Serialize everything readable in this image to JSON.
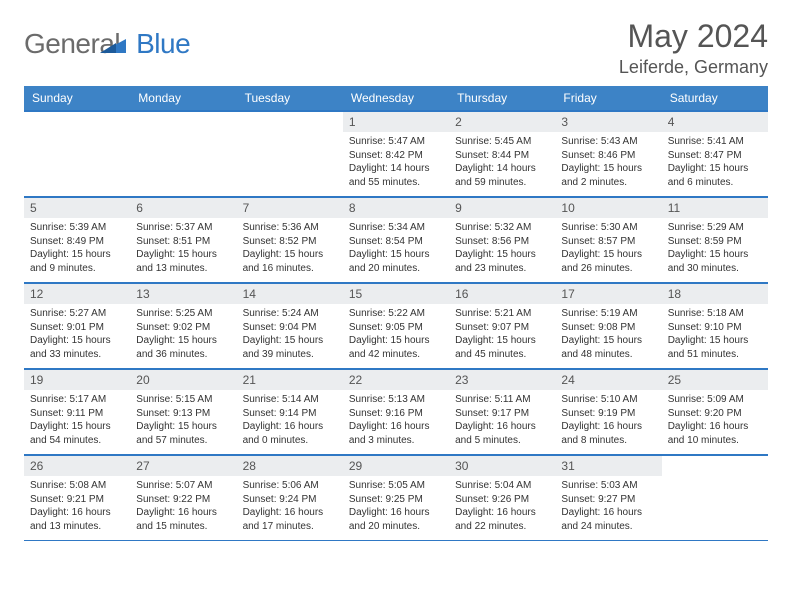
{
  "brand": {
    "first": "General",
    "second": "Blue"
  },
  "title": "May 2024",
  "location": "Leiferde, Germany",
  "colors": {
    "header_bg": "#3d83c6",
    "header_text": "#ffffff",
    "border": "#2f78c4",
    "daynum_bg": "#ebedef",
    "logo_gray": "#6b6b6b",
    "logo_blue": "#2f78c4"
  },
  "weekdays": [
    "Sunday",
    "Monday",
    "Tuesday",
    "Wednesday",
    "Thursday",
    "Friday",
    "Saturday"
  ],
  "weeks": [
    [
      null,
      null,
      null,
      {
        "n": "1",
        "sr": "5:47 AM",
        "ss": "8:42 PM",
        "dl": "14 hours and 55 minutes."
      },
      {
        "n": "2",
        "sr": "5:45 AM",
        "ss": "8:44 PM",
        "dl": "14 hours and 59 minutes."
      },
      {
        "n": "3",
        "sr": "5:43 AM",
        "ss": "8:46 PM",
        "dl": "15 hours and 2 minutes."
      },
      {
        "n": "4",
        "sr": "5:41 AM",
        "ss": "8:47 PM",
        "dl": "15 hours and 6 minutes."
      }
    ],
    [
      {
        "n": "5",
        "sr": "5:39 AM",
        "ss": "8:49 PM",
        "dl": "15 hours and 9 minutes."
      },
      {
        "n": "6",
        "sr": "5:37 AM",
        "ss": "8:51 PM",
        "dl": "15 hours and 13 minutes."
      },
      {
        "n": "7",
        "sr": "5:36 AM",
        "ss": "8:52 PM",
        "dl": "15 hours and 16 minutes."
      },
      {
        "n": "8",
        "sr": "5:34 AM",
        "ss": "8:54 PM",
        "dl": "15 hours and 20 minutes."
      },
      {
        "n": "9",
        "sr": "5:32 AM",
        "ss": "8:56 PM",
        "dl": "15 hours and 23 minutes."
      },
      {
        "n": "10",
        "sr": "5:30 AM",
        "ss": "8:57 PM",
        "dl": "15 hours and 26 minutes."
      },
      {
        "n": "11",
        "sr": "5:29 AM",
        "ss": "8:59 PM",
        "dl": "15 hours and 30 minutes."
      }
    ],
    [
      {
        "n": "12",
        "sr": "5:27 AM",
        "ss": "9:01 PM",
        "dl": "15 hours and 33 minutes."
      },
      {
        "n": "13",
        "sr": "5:25 AM",
        "ss": "9:02 PM",
        "dl": "15 hours and 36 minutes."
      },
      {
        "n": "14",
        "sr": "5:24 AM",
        "ss": "9:04 PM",
        "dl": "15 hours and 39 minutes."
      },
      {
        "n": "15",
        "sr": "5:22 AM",
        "ss": "9:05 PM",
        "dl": "15 hours and 42 minutes."
      },
      {
        "n": "16",
        "sr": "5:21 AM",
        "ss": "9:07 PM",
        "dl": "15 hours and 45 minutes."
      },
      {
        "n": "17",
        "sr": "5:19 AM",
        "ss": "9:08 PM",
        "dl": "15 hours and 48 minutes."
      },
      {
        "n": "18",
        "sr": "5:18 AM",
        "ss": "9:10 PM",
        "dl": "15 hours and 51 minutes."
      }
    ],
    [
      {
        "n": "19",
        "sr": "5:17 AM",
        "ss": "9:11 PM",
        "dl": "15 hours and 54 minutes."
      },
      {
        "n": "20",
        "sr": "5:15 AM",
        "ss": "9:13 PM",
        "dl": "15 hours and 57 minutes."
      },
      {
        "n": "21",
        "sr": "5:14 AM",
        "ss": "9:14 PM",
        "dl": "16 hours and 0 minutes."
      },
      {
        "n": "22",
        "sr": "5:13 AM",
        "ss": "9:16 PM",
        "dl": "16 hours and 3 minutes."
      },
      {
        "n": "23",
        "sr": "5:11 AM",
        "ss": "9:17 PM",
        "dl": "16 hours and 5 minutes."
      },
      {
        "n": "24",
        "sr": "5:10 AM",
        "ss": "9:19 PM",
        "dl": "16 hours and 8 minutes."
      },
      {
        "n": "25",
        "sr": "5:09 AM",
        "ss": "9:20 PM",
        "dl": "16 hours and 10 minutes."
      }
    ],
    [
      {
        "n": "26",
        "sr": "5:08 AM",
        "ss": "9:21 PM",
        "dl": "16 hours and 13 minutes."
      },
      {
        "n": "27",
        "sr": "5:07 AM",
        "ss": "9:22 PM",
        "dl": "16 hours and 15 minutes."
      },
      {
        "n": "28",
        "sr": "5:06 AM",
        "ss": "9:24 PM",
        "dl": "16 hours and 17 minutes."
      },
      {
        "n": "29",
        "sr": "5:05 AM",
        "ss": "9:25 PM",
        "dl": "16 hours and 20 minutes."
      },
      {
        "n": "30",
        "sr": "5:04 AM",
        "ss": "9:26 PM",
        "dl": "16 hours and 22 minutes."
      },
      {
        "n": "31",
        "sr": "5:03 AM",
        "ss": "9:27 PM",
        "dl": "16 hours and 24 minutes."
      },
      null
    ]
  ],
  "labels": {
    "sunrise": "Sunrise:",
    "sunset": "Sunset:",
    "daylight": "Daylight:"
  }
}
